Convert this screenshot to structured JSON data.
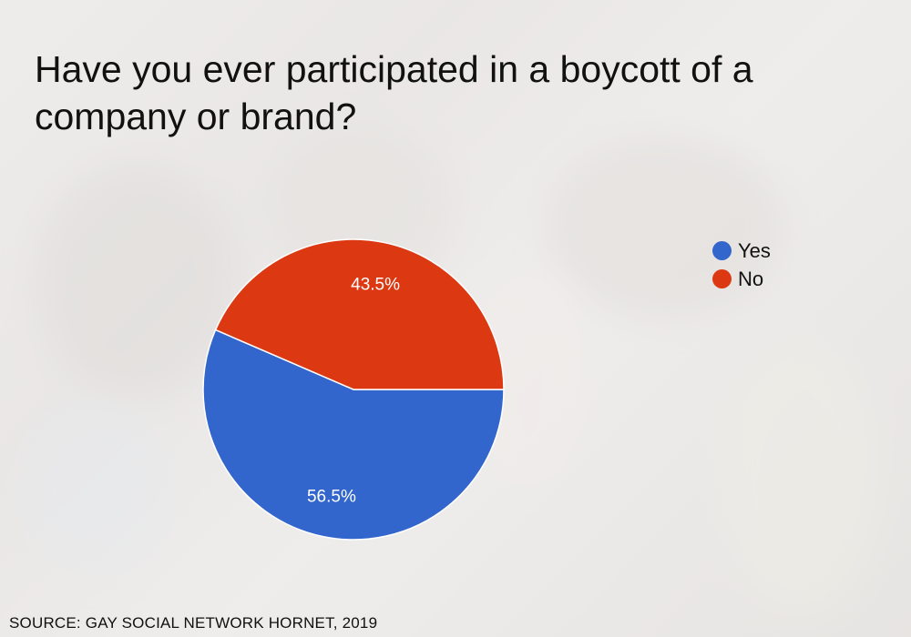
{
  "chart_data": {
    "type": "pie",
    "title": "Have you ever participated in a boycott of a company or brand?",
    "slices": [
      {
        "label": "Yes",
        "value": 56.5,
        "display": "56.5%",
        "color": "#3366cc"
      },
      {
        "label": "No",
        "value": 43.5,
        "display": "43.5%",
        "color": "#dc3912"
      }
    ],
    "legend_position": "right"
  },
  "source": "SOURCE: GAY SOCIAL NETWORK HORNET, 2019"
}
